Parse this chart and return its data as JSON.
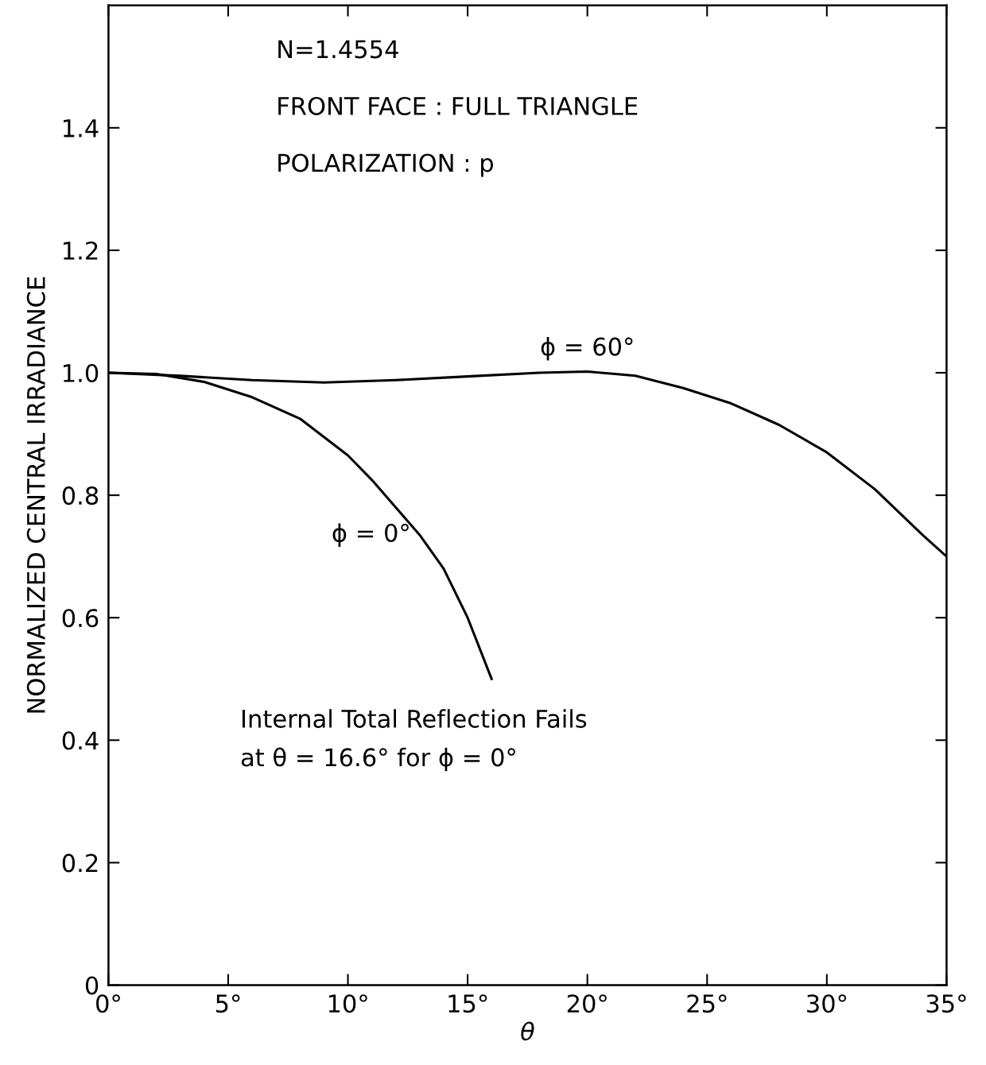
{
  "chart_data": {
    "type": "line",
    "xlabel": "θ",
    "ylabel": "NORMALIZED CENTRAL IRRADIANCE",
    "xlim": [
      0,
      35
    ],
    "ylim": [
      0,
      1.6
    ],
    "xticks": [
      {
        "value": 0,
        "label": "0°"
      },
      {
        "value": 5,
        "label": "5°"
      },
      {
        "value": 10,
        "label": "10°"
      },
      {
        "value": 15,
        "label": "15°"
      },
      {
        "value": 20,
        "label": "20°"
      },
      {
        "value": 25,
        "label": "25°"
      },
      {
        "value": 30,
        "label": "30°"
      },
      {
        "value": 35,
        "label": "35°"
      }
    ],
    "yticks": [
      0,
      0.2,
      0.4,
      0.6,
      0.8,
      {
        "value": 1.0,
        "label": "1.0"
      },
      1.2,
      1.4
    ],
    "grid": false,
    "legend": false,
    "marker": "none",
    "line_style": "solid",
    "series": [
      {
        "color": "#000000",
        "x": [
          0,
          3,
          6,
          9,
          12,
          15,
          18,
          20,
          22,
          24,
          26,
          28,
          30,
          32,
          34,
          35
        ],
        "values": [
          1.0,
          0.995,
          0.988,
          0.984,
          0.988,
          0.994,
          1.0,
          1.002,
          0.995,
          0.975,
          0.95,
          0.915,
          0.87,
          0.81,
          0.735,
          0.7
        ]
      },
      {
        "color": "#000000",
        "x": [
          0,
          2,
          4,
          6,
          8,
          10,
          11,
          12,
          13,
          14,
          15,
          16
        ],
        "values": [
          1.0,
          0.998,
          0.985,
          0.96,
          0.925,
          0.865,
          0.825,
          0.78,
          0.735,
          0.68,
          0.6,
          0.5
        ]
      }
    ],
    "annotations": [
      "N=1.4554",
      "FRONT FACE : FULL TRIANGLE",
      "POLARIZATION : p",
      {
        "text": "ϕ = 60°",
        "x": 20,
        "y": 1.002
      },
      {
        "text": "ϕ = 0°",
        "x": 13,
        "y": 0.735
      },
      "Internal Total Reflection Fails\nat θ = 16.6° for ϕ = 0°"
    ]
  }
}
